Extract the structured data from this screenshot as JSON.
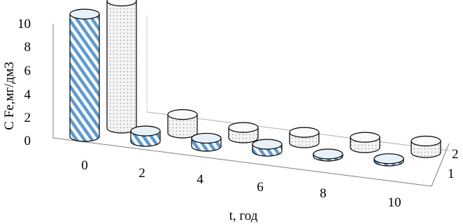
{
  "chart_data": {
    "type": "bar",
    "subtype": "3d-cylinder",
    "title": "",
    "xlabel": "t,  год",
    "ylabel": "C Fe,мг/дм3",
    "categories": [
      "0",
      "2",
      "4",
      "6",
      "8",
      "10"
    ],
    "z_categories": [
      "1",
      "2"
    ],
    "ylim": [
      0,
      10
    ],
    "yticks": [
      "0",
      "2",
      "4",
      "6",
      "8",
      "10"
    ],
    "grid": false,
    "legend": "none",
    "series": [
      {
        "values": [
          10.6,
          0.9,
          0.7,
          0.6,
          0.1,
          0.2
        ],
        "color": "#5b9bd5",
        "pattern": "diagonal-stripes"
      },
      {
        "values": [
          11.0,
          1.6,
          0.9,
          0.9,
          0.9,
          1.0
        ],
        "color": "#f2f2f2",
        "pattern": "dots"
      }
    ]
  }
}
